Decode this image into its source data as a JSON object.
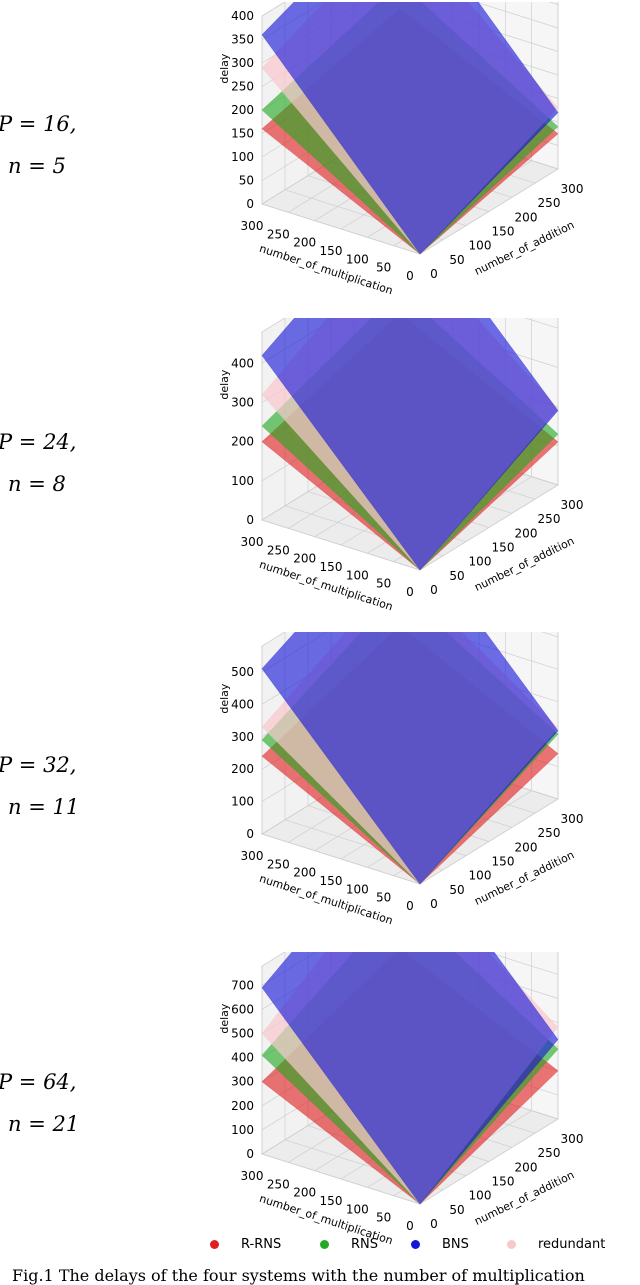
{
  "panels": [
    {
      "p_text": "P = 16,",
      "n_text": "n = 5"
    },
    {
      "p_text": "P = 24,",
      "n_text": "n = 8"
    },
    {
      "p_text": "P = 32,",
      "n_text": "n = 11"
    },
    {
      "p_text": "P = 64,",
      "n_text": "n = 21"
    }
  ],
  "legend": [
    {
      "label": "R-RNS",
      "color": "#e02020"
    },
    {
      "label": "RNS",
      "color": "#22aa22"
    },
    {
      "label": "BNS",
      "color": "#1515d8"
    },
    {
      "label": "redundant",
      "color": "#f7c8cc"
    }
  ],
  "caption": "Fig.1 The delays of the four systems with the number of multiplication",
  "chart_data": [
    {
      "type": "surface",
      "zlabel": "delay",
      "xlabel": "number_of_multiplication",
      "ylabel": "number_of_addition",
      "x_ticks": [
        "300",
        "250",
        "200",
        "150",
        "100",
        "50",
        "0"
      ],
      "y_ticks": [
        "0",
        "50",
        "100",
        "150",
        "200",
        "250",
        "300"
      ],
      "z_ticks": [
        "0",
        "50",
        "100",
        "150",
        "200",
        "250",
        "300",
        "350",
        "400"
      ],
      "zlim": [
        0,
        400
      ],
      "series": [
        {
          "name": "R-RNS",
          "color": "#e02020",
          "at_max_mult": 160,
          "at_max_add": 75
        },
        {
          "name": "RNS",
          "color": "#22aa22",
          "at_max_mult": 200,
          "at_max_add": 90
        },
        {
          "name": "BNS",
          "color": "#1515d8",
          "at_max_mult": 360,
          "at_max_add": 120
        },
        {
          "name": "redundant",
          "color": "#f7c8cc",
          "at_max_mult": 290,
          "at_max_add": 130
        }
      ]
    },
    {
      "type": "surface",
      "zlabel": "delay",
      "xlabel": "number_of_multiplication",
      "ylabel": "number_of_addition",
      "x_ticks": [
        "300",
        "250",
        "200",
        "150",
        "100",
        "50",
        "0"
      ],
      "y_ticks": [
        "0",
        "50",
        "100",
        "150",
        "200",
        "250",
        "300"
      ],
      "z_ticks": [
        "0",
        "100",
        "200",
        "300",
        "400"
      ],
      "zlim": [
        0,
        480
      ],
      "series": [
        {
          "name": "R-RNS",
          "color": "#e02020",
          "at_max_mult": 200,
          "at_max_add": 110
        },
        {
          "name": "RNS",
          "color": "#22aa22",
          "at_max_mult": 240,
          "at_max_add": 130
        },
        {
          "name": "BNS",
          "color": "#1515d8",
          "at_max_mult": 420,
          "at_max_add": 190
        },
        {
          "name": "redundant",
          "color": "#f7c8cc",
          "at_max_mult": 320,
          "at_max_add": 195
        }
      ]
    },
    {
      "type": "surface",
      "zlabel": "delay",
      "xlabel": "number_of_multiplication",
      "ylabel": "number_of_addition",
      "x_ticks": [
        "300",
        "250",
        "200",
        "150",
        "100",
        "50",
        "0"
      ],
      "y_ticks": [
        "0",
        "50",
        "100",
        "150",
        "200",
        "250",
        "300"
      ],
      "z_ticks": [
        "0",
        "100",
        "200",
        "300",
        "400",
        "500"
      ],
      "zlim": [
        0,
        580
      ],
      "series": [
        {
          "name": "R-RNS",
          "color": "#e02020",
          "at_max_mult": 240,
          "at_max_add": 140
        },
        {
          "name": "RNS",
          "color": "#22aa22",
          "at_max_mult": 290,
          "at_max_add": 200
        },
        {
          "name": "BNS",
          "color": "#1515d8",
          "at_max_mult": 510,
          "at_max_add": 210
        },
        {
          "name": "redundant",
          "color": "#f7c8cc",
          "at_max_mult": 330,
          "at_max_add": 220
        }
      ]
    },
    {
      "type": "surface",
      "zlabel": "delay",
      "xlabel": "number_of_multiplication",
      "ylabel": "number_of_addition",
      "x_ticks": [
        "300",
        "250",
        "200",
        "150",
        "100",
        "50",
        "0"
      ],
      "y_ticks": [
        "0",
        "50",
        "100",
        "150",
        "200",
        "250",
        "300"
      ],
      "z_ticks": [
        "0",
        "100",
        "200",
        "300",
        "400",
        "500",
        "600",
        "700"
      ],
      "zlim": [
        0,
        780
      ],
      "series": [
        {
          "name": "R-RNS",
          "color": "#e02020",
          "at_max_mult": 300,
          "at_max_add": 200
        },
        {
          "name": "RNS",
          "color": "#22aa22",
          "at_max_mult": 410,
          "at_max_add": 290
        },
        {
          "name": "BNS",
          "color": "#1515d8",
          "at_max_mult": 690,
          "at_max_add": 330
        },
        {
          "name": "redundant",
          "color": "#f7c8cc",
          "at_max_mult": 500,
          "at_max_add": 380
        }
      ]
    }
  ]
}
